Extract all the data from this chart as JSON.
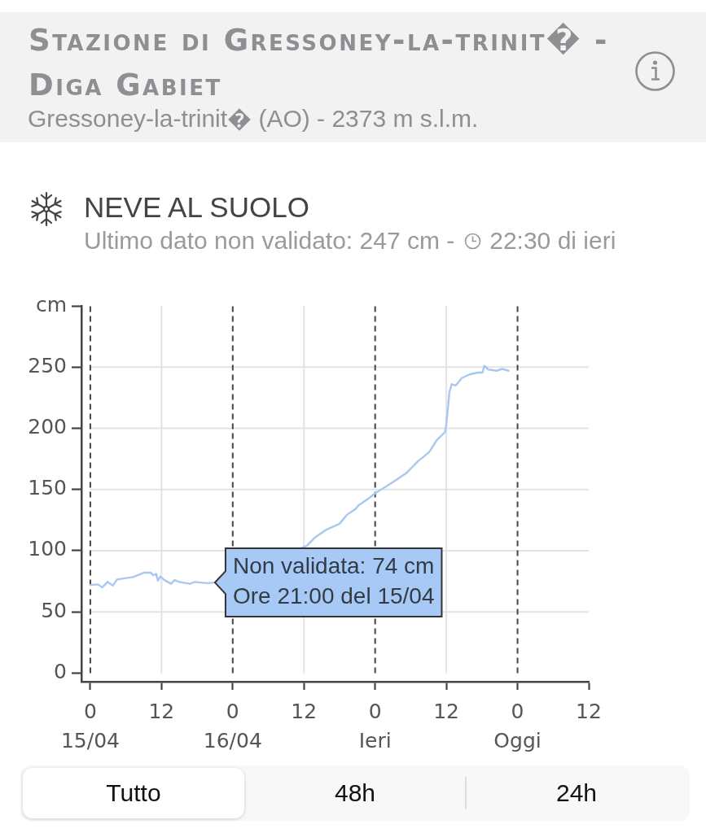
{
  "chart_data": {
    "type": "line",
    "title": "NEVE AL SUOLO",
    "subtitle": "Ultimo dato non validato: 247 cm -",
    "annotations": [
      "Stazione di Gressoney-la-trinit� - Diga Gabiet",
      "Gressoney-la-trinit� (AO) - 2373 m s.l.m.",
      "22:30 di ieri",
      {
        "text": "Non validata: 74 cm\nOre 21:00 del 15/04",
        "x": "--04-15T21:00",
        "y": 74
      },
      "Tutto",
      "48h",
      "24h"
    ],
    "x": [
      "--04-15T00:00",
      "--04-15T01:18",
      "--04-15T02:00",
      "--04-15T02:54",
      "--04-15T03:48",
      "--04-15T04:30",
      "--04-15T05:48",
      "--04-15T07:12",
      "--04-15T08:00",
      "--04-15T09:00",
      "--04-15T10:12",
      "--04-15T10:36",
      "--04-15T11:06",
      "--04-15T11:24",
      "--04-15T11:48",
      "--04-15T12:30",
      "--04-15T13:36",
      "--04-15T14:12",
      "--04-15T15:00",
      "--04-15T16:48",
      "--04-15T17:36",
      "--04-15T19:36",
      "--04-15T21:00",
      "--04-16T12:30",
      "--04-16T13:54",
      "--04-16T15:42",
      "--04-16T18:00",
      "--04-16T19:18",
      "--04-16T20:42",
      "--04-16T21:12",
      "--04-16T23:00",
      "--04-17T00:00",
      "--04-17T01:42",
      "--04-17T03:36",
      "--04-17T05:24",
      "--04-17T07:12",
      "--04-17T09:06",
      "--04-17T10:24",
      "--04-17T11:48",
      "--04-17T12:00",
      "--04-17T12:18",
      "--04-17T12:30",
      "--04-17T12:54",
      "--04-17T13:36",
      "--04-17T14:36",
      "--04-17T15:54",
      "--04-17T17:18",
      "--04-17T18:06",
      "--04-17T18:24",
      "--04-17T19:06",
      "--04-17T20:30",
      "--04-17T21:24",
      "--04-17T22:30"
    ],
    "series": [
      {
        "color": "#a8c8f0",
        "values": [
          72,
          72.5,
          70,
          74.5,
          71.5,
          76.5,
          77.5,
          78.5,
          80,
          82,
          82,
          80,
          81,
          75.5,
          79,
          76,
          73,
          76,
          74.5,
          73,
          74.5,
          73.5,
          74,
          104,
          111,
          117,
          122,
          129.5,
          134,
          137,
          143,
          147,
          152,
          158,
          164,
          173,
          180.5,
          190.5,
          197,
          204,
          218,
          229,
          236,
          235,
          241,
          244,
          245.5,
          245.5,
          251,
          248,
          247,
          248.5,
          247
        ]
      }
    ],
    "xlim": [
      "--04-14T22:30",
      "--04-18T12:00"
    ],
    "ylim": [
      -7,
      300
    ],
    "xticks": [
      {
        "value": "--04-15T00:00",
        "label": "0\n15/04"
      },
      {
        "value": "--04-15T12:00",
        "label": "12"
      },
      {
        "value": "--04-16T00:00",
        "label": "0\n16/04"
      },
      {
        "value": "--04-16T12:00",
        "label": "12"
      },
      {
        "value": "--04-17T00:00",
        "label": "0\nIeri"
      },
      {
        "value": "--04-17T12:00",
        "label": "12"
      },
      {
        "value": "--04-18T00:00",
        "label": "0\nOggi"
      },
      {
        "value": "--04-18T12:00",
        "label": "12"
      }
    ],
    "yticks": [
      0,
      50,
      100,
      150,
      200,
      250,
      {
        "value": 300,
        "label": "cm"
      }
    ],
    "grid": "y",
    "ref_lines": [
      {
        "axis": "x",
        "value": "--04-15T00:00",
        "color": "#444444",
        "line_style": "dashed"
      },
      {
        "axis": "x",
        "value": "--04-15T12:00",
        "color": "#e3e3e3"
      },
      {
        "axis": "x",
        "value": "--04-16T00:00",
        "color": "#444444",
        "line_style": "dashed"
      },
      {
        "axis": "x",
        "value": "--04-16T12:00",
        "color": "#e3e3e3"
      },
      {
        "axis": "x",
        "value": "--04-17T00:00",
        "color": "#444444",
        "line_style": "dashed"
      },
      {
        "axis": "x",
        "value": "--04-17T12:00",
        "color": "#e3e3e3"
      },
      {
        "axis": "x",
        "value": "--04-18T00:00",
        "color": "#444444",
        "line_style": "dashed"
      }
    ]
  }
}
